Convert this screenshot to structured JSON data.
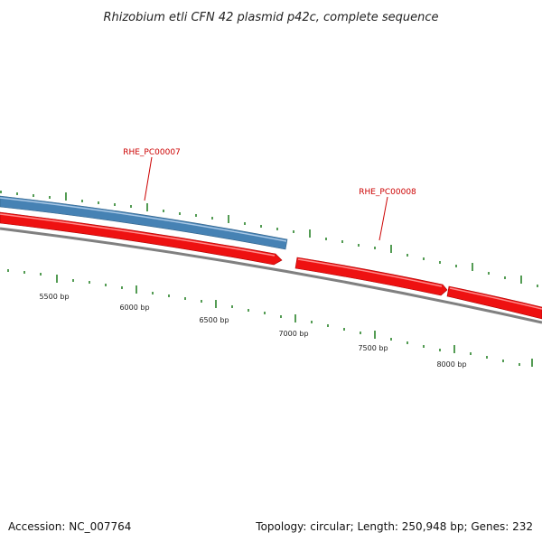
{
  "title": "Rhizobium etli CFN 42 plasmid p42c, complete sequence",
  "accession_label": "Accession: NC_007764",
  "summary_label": "Topology: circular; Length: 250,948 bp; Genes: 232",
  "tick_labels": [
    "5500 bp",
    "6000 bp",
    "6500 bp",
    "7000 bp",
    "7500 bp",
    "8000 bp"
  ],
  "genes": [
    {
      "name": "RHE_PC00007",
      "color": "#4682b4"
    },
    {
      "name": "RHE_PC00008",
      "color": "#ee1111"
    }
  ],
  "colors": {
    "tick": "#1a7a1a",
    "backbone": "#808080",
    "forward_feature": "#4682b4",
    "reverse_feature": "#ee1111",
    "label": "#cc0000"
  }
}
